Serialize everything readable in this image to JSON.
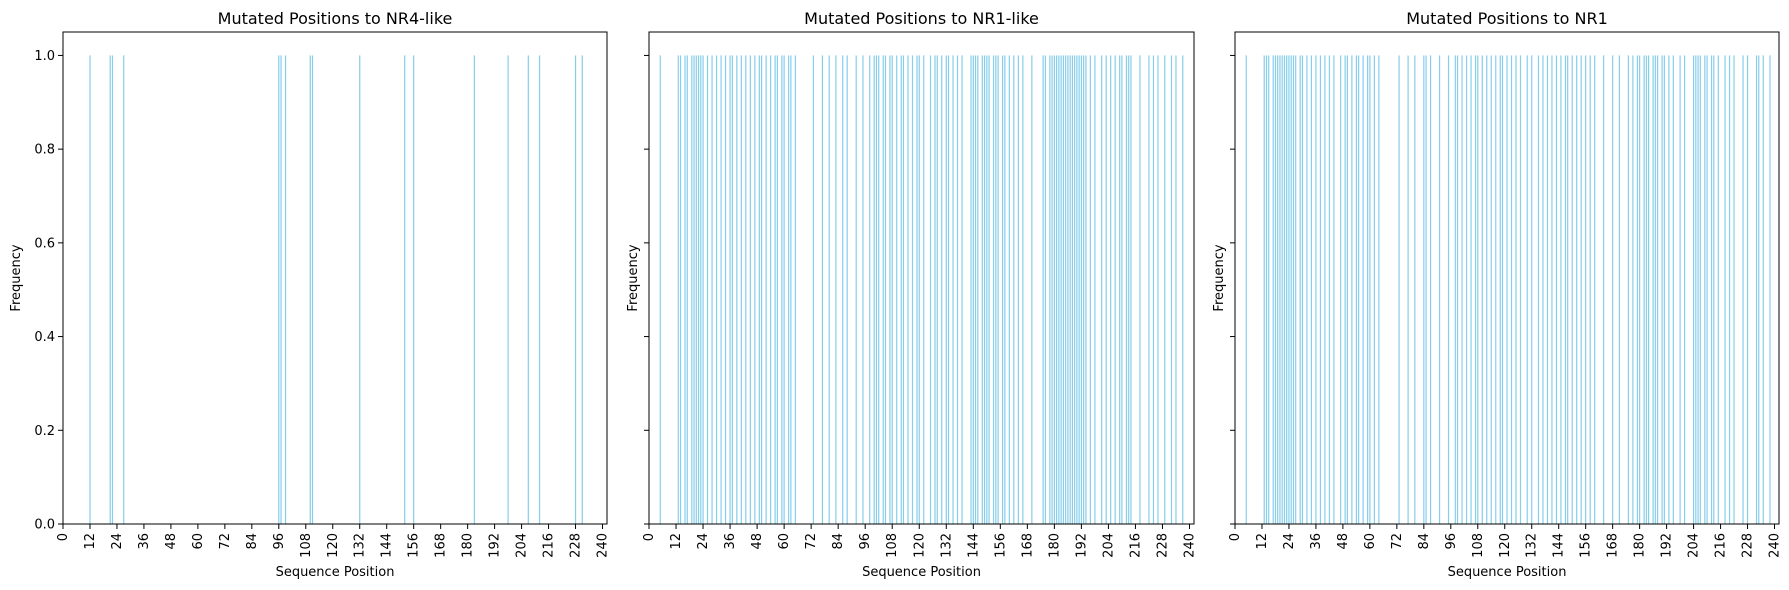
{
  "chart_data": [
    {
      "type": "bar",
      "title": "Mutated Positions to NR4-like",
      "xlabel": "Sequence Position",
      "ylabel": "Frequency",
      "xlim": [
        0,
        242
      ],
      "ylim": [
        0,
        1.05
      ],
      "xticks": [
        0,
        12,
        24,
        36,
        48,
        60,
        72,
        84,
        96,
        108,
        120,
        132,
        144,
        156,
        168,
        180,
        192,
        204,
        216,
        228,
        240
      ],
      "yticks": [
        "0.0",
        "0.2",
        "0.4",
        "0.6",
        "0.8",
        "1.0"
      ],
      "bar_color": "#87ceeb",
      "x": [
        12,
        21,
        22,
        27,
        96,
        97,
        99,
        110,
        111,
        132,
        152,
        156,
        183,
        198,
        207,
        212,
        228,
        231
      ],
      "values": [
        1,
        1,
        1,
        1,
        1,
        1,
        1,
        1,
        1,
        1,
        1,
        1,
        1,
        1,
        1,
        1,
        1,
        1
      ]
    },
    {
      "type": "bar",
      "title": "Mutated Positions to NR1-like",
      "xlabel": "Sequence Position",
      "ylabel": "Frequency",
      "xlim": [
        0,
        242
      ],
      "ylim": [
        0,
        1.05
      ],
      "xticks": [
        0,
        12,
        24,
        36,
        48,
        60,
        72,
        84,
        96,
        108,
        120,
        132,
        144,
        156,
        168,
        180,
        192,
        204,
        216,
        228,
        240
      ],
      "yticks": [
        "0.0",
        "0.2",
        "0.4",
        "0.6",
        "0.8",
        "1.0"
      ],
      "bar_color": "#87ceeb",
      "x": [
        5,
        13,
        14,
        16,
        17,
        19,
        20,
        21,
        22,
        23,
        24,
        26,
        28,
        30,
        32,
        34,
        36,
        37,
        39,
        41,
        43,
        45,
        47,
        49,
        50,
        52,
        54,
        56,
        57,
        59,
        60,
        62,
        63,
        65,
        73,
        77,
        80,
        83,
        86,
        88,
        92,
        95,
        98,
        100,
        101,
        102,
        104,
        105,
        107,
        108,
        110,
        112,
        113,
        115,
        117,
        119,
        120,
        122,
        125,
        127,
        128,
        130,
        132,
        133,
        135,
        137,
        139,
        143,
        144,
        145,
        146,
        148,
        149,
        150,
        151,
        153,
        154,
        155,
        157,
        158,
        160,
        162,
        164,
        166,
        170,
        175,
        176,
        178,
        179,
        180,
        181,
        182,
        183,
        184,
        185,
        186,
        187,
        188,
        189,
        190,
        191,
        192,
        193,
        194,
        196,
        198,
        201,
        203,
        205,
        207,
        209,
        210,
        212,
        213,
        214,
        218,
        222,
        224,
        226,
        229,
        232,
        234,
        237
      ],
      "values": [
        1,
        1,
        1,
        1,
        1,
        1,
        1,
        1,
        1,
        1,
        1,
        1,
        1,
        1,
        1,
        1,
        1,
        1,
        1,
        1,
        1,
        1,
        1,
        1,
        1,
        1,
        1,
        1,
        1,
        1,
        1,
        1,
        1,
        1,
        1,
        1,
        1,
        1,
        1,
        1,
        1,
        1,
        1,
        1,
        1,
        1,
        1,
        1,
        1,
        1,
        1,
        1,
        1,
        1,
        1,
        1,
        1,
        1,
        1,
        1,
        1,
        1,
        1,
        1,
        1,
        1,
        1,
        1,
        1,
        1,
        1,
        1,
        1,
        1,
        1,
        1,
        1,
        1,
        1,
        1,
        1,
        1,
        1,
        1,
        1,
        1,
        1,
        1,
        1,
        1,
        1,
        1,
        1,
        1,
        1,
        1,
        1,
        1,
        1,
        1,
        1,
        1,
        1,
        1,
        1,
        1,
        1,
        1,
        1,
        1,
        1,
        1,
        1,
        1,
        1,
        1,
        1,
        1,
        1,
        1,
        1,
        1,
        1
      ]
    },
    {
      "type": "bar",
      "title": "Mutated Positions to NR1",
      "xlabel": "Sequence Position",
      "ylabel": "Frequency",
      "xlim": [
        0,
        242
      ],
      "ylim": [
        0,
        1.05
      ],
      "xticks": [
        0,
        12,
        24,
        36,
        48,
        60,
        72,
        84,
        96,
        108,
        120,
        132,
        144,
        156,
        168,
        180,
        192,
        204,
        216,
        228,
        240
      ],
      "yticks": [
        "0.0",
        "0.2",
        "0.4",
        "0.6",
        "0.8",
        "1.0"
      ],
      "bar_color": "#87ceeb",
      "x": [
        5,
        13,
        14,
        15,
        17,
        18,
        19,
        20,
        21,
        22,
        23,
        24,
        25,
        26,
        27,
        29,
        30,
        32,
        34,
        36,
        38,
        40,
        42,
        44,
        47,
        49,
        50,
        52,
        54,
        55,
        57,
        59,
        60,
        62,
        64,
        73,
        77,
        80,
        84,
        85,
        87,
        91,
        95,
        98,
        99,
        101,
        103,
        105,
        107,
        108,
        110,
        112,
        114,
        116,
        118,
        119,
        121,
        123,
        125,
        127,
        130,
        132,
        135,
        137,
        139,
        141,
        143,
        145,
        147,
        148,
        150,
        152,
        154,
        156,
        158,
        160,
        164,
        168,
        171,
        175,
        177,
        179,
        180,
        182,
        183,
        184,
        186,
        187,
        188,
        190,
        191,
        193,
        195,
        198,
        200,
        204,
        205,
        206,
        207,
        209,
        210,
        212,
        213,
        215,
        218,
        220,
        222,
        226,
        228,
        232,
        233,
        235,
        238
      ],
      "values": [
        1,
        1,
        1,
        1,
        1,
        1,
        1,
        1,
        1,
        1,
        1,
        1,
        1,
        1,
        1,
        1,
        1,
        1,
        1,
        1,
        1,
        1,
        1,
        1,
        1,
        1,
        1,
        1,
        1,
        1,
        1,
        1,
        1,
        1,
        1,
        1,
        1,
        1,
        1,
        1,
        1,
        1,
        1,
        1,
        1,
        1,
        1,
        1,
        1,
        1,
        1,
        1,
        1,
        1,
        1,
        1,
        1,
        1,
        1,
        1,
        1,
        1,
        1,
        1,
        1,
        1,
        1,
        1,
        1,
        1,
        1,
        1,
        1,
        1,
        1,
        1,
        1,
        1,
        1,
        1,
        1,
        1,
        1,
        1,
        1,
        1,
        1,
        1,
        1,
        1,
        1,
        1,
        1,
        1,
        1,
        1,
        1,
        1,
        1,
        1,
        1,
        1,
        1,
        1,
        1,
        1,
        1,
        1,
        1,
        1,
        1,
        1,
        1
      ]
    }
  ]
}
